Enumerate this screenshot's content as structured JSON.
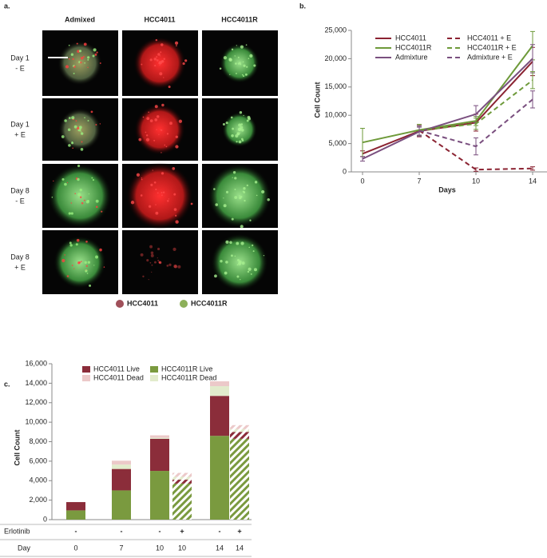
{
  "panel_a": {
    "label": "a.",
    "columns": [
      "Admixed",
      "HCC4011",
      "HCC4011R"
    ],
    "rows": [
      [
        "Day 1",
        "- E"
      ],
      [
        "Day 1",
        "+ E"
      ],
      [
        "Day 8",
        "- E"
      ],
      [
        "Day 8",
        "+ E"
      ]
    ],
    "legend": [
      {
        "name": "HCC4011",
        "color": "#a0505a"
      },
      {
        "name": "HCC4011R",
        "color": "#8db05a"
      }
    ]
  },
  "chart_data": [
    {
      "type": "line",
      "label": "b.",
      "ylabel": "Cell Count",
      "xlabel": "Days",
      "categories": [
        "0",
        "7",
        "10",
        "14"
      ],
      "ylim": [
        0,
        25000
      ],
      "yticks": [
        0,
        {
          "value": 5000,
          "label": "5,000"
        },
        {
          "value": 10000,
          "label": "10,000"
        },
        {
          "value": 15000,
          "label": "15,000"
        },
        {
          "value": 20000,
          "label": "20,000"
        },
        {
          "value": 25000,
          "label": "25,000"
        }
      ],
      "series": [
        {
          "name": "HCC4011",
          "color": "#8b2332",
          "dash": false,
          "values": [
            3200,
            7200,
            8700,
            19500
          ],
          "errors": [
            500,
            1000,
            1500,
            2500
          ]
        },
        {
          "name": "HCC4011R",
          "color": "#6e9a3a",
          "dash": false,
          "values": [
            5200,
            7400,
            9000,
            22300
          ],
          "errors": [
            2500,
            1000,
            800,
            2500
          ]
        },
        {
          "name": "Admixture",
          "color": "#7a4f7f",
          "dash": false,
          "values": [
            2300,
            7100,
            10200,
            20000
          ],
          "errors": [
            400,
            800,
            1500,
            2500
          ]
        },
        {
          "name": "HCC4011 + E",
          "color": "#8b2332",
          "dash": true,
          "values": [
            null,
            7300,
            400,
            600
          ],
          "errors": [
            null,
            800,
            300,
            300
          ]
        },
        {
          "name": "HCC4011R + E",
          "color": "#6e9a3a",
          "dash": true,
          "values": [
            null,
            7300,
            8500,
            16200
          ],
          "errors": [
            null,
            800,
            1000,
            1500
          ]
        },
        {
          "name": "Admixture + E",
          "color": "#7a4f7f",
          "dash": true,
          "values": [
            null,
            7300,
            4500,
            12800
          ],
          "errors": [
            null,
            800,
            1500,
            1500
          ]
        }
      ]
    },
    {
      "type": "stacked-bar",
      "label": "c.",
      "ylabel": "Cell Count",
      "categories": [
        "0",
        "7",
        "10",
        "10",
        "14",
        "14"
      ],
      "row_labels": [
        "Erlotinib",
        "Day"
      ],
      "erlotinib": [
        "-",
        "-",
        "-",
        "+",
        "-",
        "+"
      ],
      "hatched": [
        false,
        false,
        false,
        true,
        false,
        true
      ],
      "ylim": [
        0,
        16000
      ],
      "yticks": [
        0,
        {
          "value": 2000,
          "label": "2,000"
        },
        {
          "value": 4000,
          "label": "4,000"
        },
        {
          "value": 6000,
          "label": "6,000"
        },
        {
          "value": 8000,
          "label": "8,000"
        },
        {
          "value": 10000,
          "label": "10,000"
        },
        {
          "value": 12000,
          "label": "12,000"
        },
        {
          "value": 14000,
          "label": "14,000"
        },
        {
          "value": 16000,
          "label": "16,000"
        }
      ],
      "series": [
        {
          "name": "HCC4011R Live",
          "color": "#7a9a3f",
          "values": [
            950,
            3000,
            5000,
            3700,
            8600,
            8300
          ]
        },
        {
          "name": "HCC4011 Live",
          "color": "#8b2d3a",
          "values": [
            850,
            2200,
            3300,
            400,
            4100,
            700
          ]
        },
        {
          "name": "HCC4011R Dead",
          "color": "#e2ebcc",
          "values": [
            0,
            450,
            100,
            300,
            1000,
            300
          ]
        },
        {
          "name": "HCC4011 Dead",
          "color": "#ecc9c9",
          "values": [
            0,
            400,
            250,
            400,
            500,
            400
          ]
        }
      ]
    }
  ]
}
